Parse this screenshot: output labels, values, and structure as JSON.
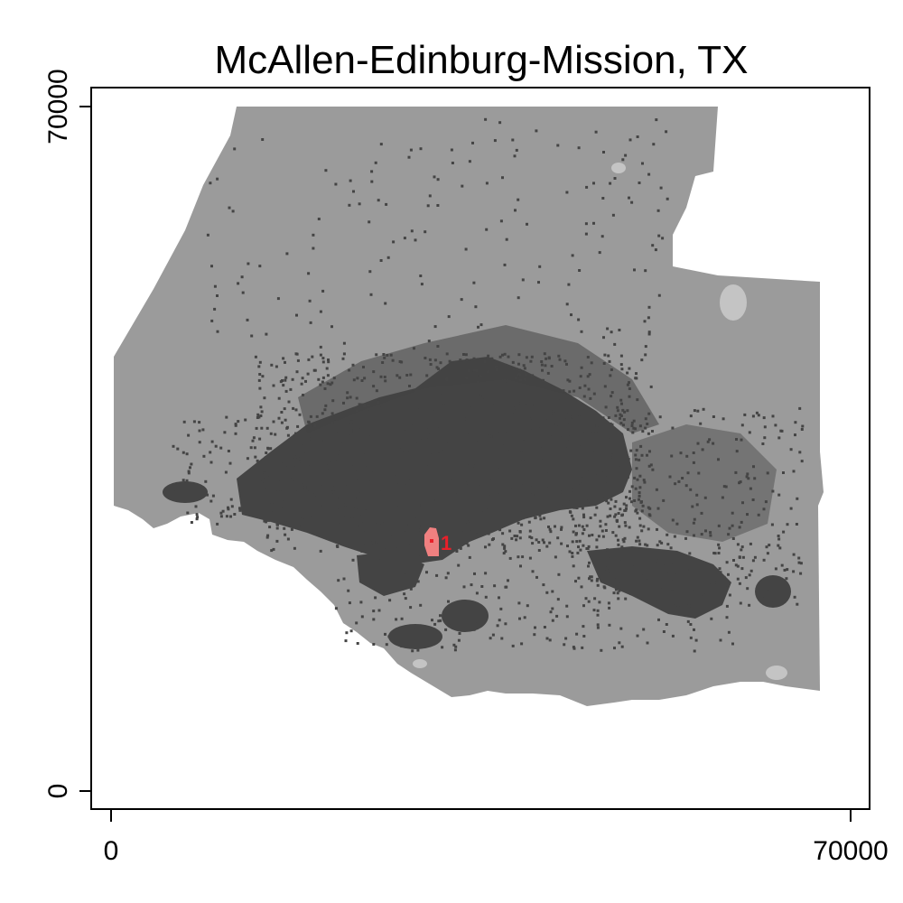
{
  "title": "McAllen-Edinburg-Mission, TX",
  "x_axis": {
    "min": 0,
    "max": 70000,
    "tick_labels": [
      "0",
      "70000"
    ]
  },
  "y_axis": {
    "min": 0,
    "max": 70000,
    "tick_labels": [
      "0",
      "70000"
    ]
  },
  "center_marker": {
    "label": "1",
    "color": "#e8202a",
    "fill": "#f08080"
  },
  "colors": {
    "region": "#9b9b9b",
    "urban": "#444444",
    "water": "#c4c4c4",
    "background": "#ffffff"
  },
  "legend": "none"
}
